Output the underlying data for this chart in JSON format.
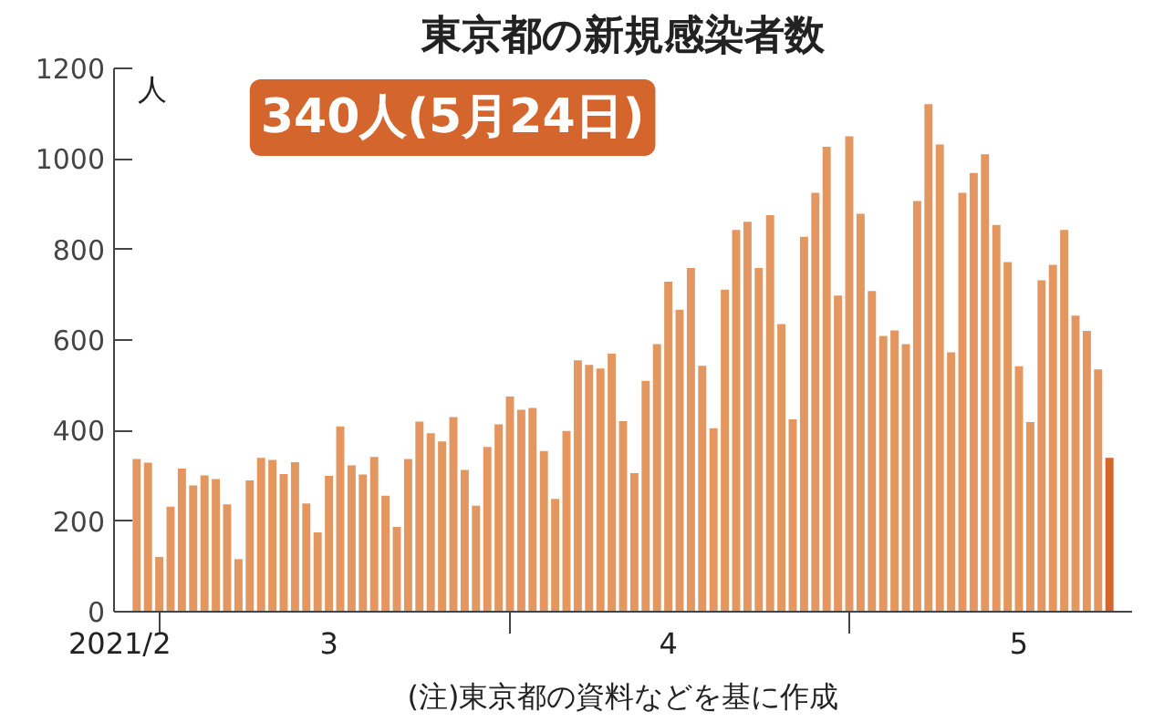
{
  "chart_data": {
    "type": "bar",
    "title": "東京都の新規感染者数",
    "ylabel": "人",
    "annotations": [
      "340人(5月24日)",
      "(注)東京都の資料などを基に作成"
    ],
    "x": [
      "2021-02-27",
      "2021-02-28",
      "2021-03-01",
      "2021-03-02",
      "2021-03-03",
      "2021-03-04",
      "2021-03-05",
      "2021-03-06",
      "2021-03-07",
      "2021-03-08",
      "2021-03-09",
      "2021-03-10",
      "2021-03-11",
      "2021-03-12",
      "2021-03-13",
      "2021-03-14",
      "2021-03-15",
      "2021-03-16",
      "2021-03-17",
      "2021-03-18",
      "2021-03-19",
      "2021-03-20",
      "2021-03-21",
      "2021-03-22",
      "2021-03-23",
      "2021-03-24",
      "2021-03-25",
      "2021-03-26",
      "2021-03-27",
      "2021-03-28",
      "2021-03-29",
      "2021-03-30",
      "2021-03-31",
      "2021-04-01",
      "2021-04-02",
      "2021-04-03",
      "2021-04-04",
      "2021-04-05",
      "2021-04-06",
      "2021-04-07",
      "2021-04-08",
      "2021-04-09",
      "2021-04-10",
      "2021-04-11",
      "2021-04-12",
      "2021-04-13",
      "2021-04-14",
      "2021-04-15",
      "2021-04-16",
      "2021-04-17",
      "2021-04-18",
      "2021-04-19",
      "2021-04-20",
      "2021-04-21",
      "2021-04-22",
      "2021-04-23",
      "2021-04-24",
      "2021-04-25",
      "2021-04-26",
      "2021-04-27",
      "2021-04-28",
      "2021-04-29",
      "2021-04-30",
      "2021-05-01",
      "2021-05-02",
      "2021-05-03",
      "2021-05-04",
      "2021-05-05",
      "2021-05-06",
      "2021-05-07",
      "2021-05-08",
      "2021-05-09",
      "2021-05-10",
      "2021-05-11",
      "2021-05-12",
      "2021-05-13",
      "2021-05-14",
      "2021-05-15",
      "2021-05-16",
      "2021-05-17",
      "2021-05-18",
      "2021-05-19",
      "2021-05-20",
      "2021-05-21",
      "2021-05-22",
      "2021-05-23",
      "2021-05-24"
    ],
    "values": [
      337,
      329,
      121,
      232,
      316,
      279,
      301,
      293,
      237,
      116,
      290,
      340,
      335,
      304,
      330,
      239,
      175,
      300,
      409,
      323,
      303,
      342,
      256,
      187,
      337,
      420,
      394,
      376,
      430,
      313,
      234,
      364,
      414,
      475,
      446,
      450,
      355,
      249,
      399,
      555,
      545,
      537,
      570,
      421,
      306,
      510,
      591,
      729,
      667,
      759,
      543,
      405,
      711,
      843,
      861,
      759,
      876,
      635,
      425,
      828,
      925,
      1027,
      698,
      1050,
      879,
      708,
      609,
      621,
      591,
      907,
      1121,
      1032,
      573,
      925,
      969,
      1010,
      854,
      772,
      542,
      419,
      732,
      766,
      843,
      654,
      620,
      535,
      340
    ],
    "colors": [
      "#e3965f",
      "#e3965f",
      "#e3965f",
      "#e3965f",
      "#e3965f",
      "#e3965f",
      "#e3965f",
      "#e3965f",
      "#e3965f",
      "#e3965f",
      "#e3965f",
      "#e3965f",
      "#e3965f",
      "#e3965f",
      "#e3965f",
      "#e3965f",
      "#e3965f",
      "#e3965f",
      "#e3965f",
      "#e3965f",
      "#e3965f",
      "#e3965f",
      "#e3965f",
      "#e3965f",
      "#e3965f",
      "#e3965f",
      "#e3965f",
      "#e3965f",
      "#e3965f",
      "#e3965f",
      "#e3965f",
      "#e3965f",
      "#e3965f",
      "#e3965f",
      "#e3965f",
      "#e3965f",
      "#e3965f",
      "#e3965f",
      "#e3965f",
      "#e3965f",
      "#e3965f",
      "#e3965f",
      "#e3965f",
      "#e3965f",
      "#e3965f",
      "#e3965f",
      "#e3965f",
      "#e3965f",
      "#e3965f",
      "#e3965f",
      "#e3965f",
      "#e3965f",
      "#e3965f",
      "#e3965f",
      "#e3965f",
      "#e3965f",
      "#e3965f",
      "#e3965f",
      "#e3965f",
      "#e3965f",
      "#e3965f",
      "#e3965f",
      "#e3965f",
      "#e3965f",
      "#e3965f",
      "#e3965f",
      "#e3965f",
      "#e3965f",
      "#e3965f",
      "#e3965f",
      "#e3965f",
      "#e3965f",
      "#e3965f",
      "#e3965f",
      "#e3965f",
      "#e3965f",
      "#e3965f",
      "#e3965f",
      "#e3965f",
      "#e3965f",
      "#e3965f",
      "#e3965f",
      "#e3965f",
      "#e3965f",
      "#e3965f",
      "#e3965f",
      "#d4652c"
    ],
    "xlim": [
      "2021-02-25",
      "2021-05-26"
    ],
    "xticks": [
      {
        "value": "2021-02-25T12:00",
        "label": "2021/2"
      },
      {
        "value": "2021-03-01",
        "label": null
      },
      {
        "value": "2021-03-16",
        "label": "3"
      },
      {
        "value": "2021-04-01",
        "label": null
      },
      {
        "value": "2021-04-15",
        "label": "4"
      },
      {
        "value": "2021-05-01",
        "label": null
      },
      {
        "value": "2021-05-16",
        "label": "5"
      }
    ],
    "ylim": [
      0,
      1200
    ],
    "yticks": [
      0,
      200,
      400,
      600,
      800,
      1000,
      1200
    ],
    "grid": false
  }
}
